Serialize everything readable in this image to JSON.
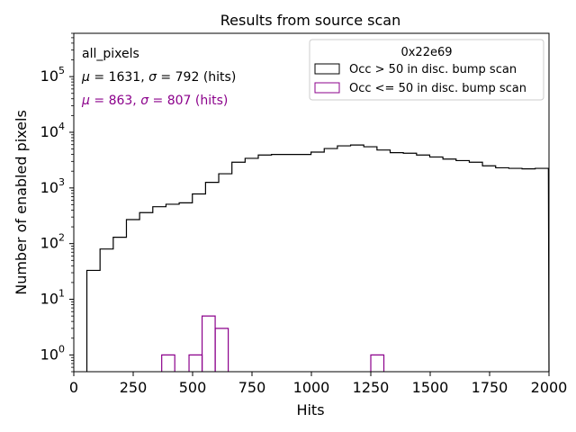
{
  "chart_data": {
    "type": "histogram",
    "title": "Results from source scan",
    "xlabel": "Hits",
    "ylabel": "Number of enabled pixels",
    "xlim": [
      0,
      2000
    ],
    "ylim_log": [
      0.5,
      600000
    ],
    "yscale": "log",
    "x_ticks": [
      0,
      250,
      500,
      750,
      1000,
      1250,
      1500,
      1750,
      2000
    ],
    "x_tick_labels": [
      "0",
      "250",
      "500",
      "750",
      "1000",
      "1250",
      "1500",
      "1750",
      "2000"
    ],
    "y_ticks": [
      {
        "value": 1,
        "base": "10",
        "exp": "0"
      },
      {
        "value": 10,
        "base": "10",
        "exp": "1"
      },
      {
        "value": 100,
        "base": "10",
        "exp": "2"
      },
      {
        "value": 1000,
        "base": "10",
        "exp": "3"
      },
      {
        "value": 10000,
        "base": "10",
        "exp": "4"
      },
      {
        "value": 100000,
        "base": "10",
        "exp": "5"
      }
    ],
    "legend": {
      "title": "0x22e69",
      "position": "top-right",
      "entries": [
        {
          "label": "Occ > 50 in disc. bump scan",
          "color": "#000000"
        },
        {
          "label": "Occ <= 50 in disc. bump scan",
          "color": "#8b008b"
        }
      ]
    },
    "annotations": {
      "name": "all_pixels",
      "stats_main": {
        "mu": "1631",
        "sigma": "792",
        "unit": "(hits)",
        "color": "#000000"
      },
      "stats_low": {
        "mu": "863",
        "sigma": "807",
        "unit": "(hits)",
        "color": "#8b008b"
      }
    },
    "bin_width": 55.5,
    "series": [
      {
        "name": "Occ > 50 in disc. bump scan",
        "color": "#000000",
        "bins_start": 55,
        "values": [
          33,
          80,
          130,
          270,
          360,
          460,
          510,
          540,
          780,
          1260,
          1800,
          2900,
          3400,
          3900,
          4000,
          4000,
          4000,
          4400,
          5100,
          5700,
          5900,
          5500,
          4800,
          4300,
          4200,
          3900,
          3600,
          3300,
          3100,
          2900,
          2500,
          2300,
          2250,
          2200,
          2250
        ]
      },
      {
        "name": "Occ <= 50 in disc. bump scan",
        "color": "#8b008b",
        "bars": [
          {
            "x0": 370,
            "x1": 425,
            "value": 1
          },
          {
            "x0": 485,
            "x1": 540,
            "value": 1
          },
          {
            "x0": 540,
            "x1": 595,
            "value": 5
          },
          {
            "x0": 595,
            "x1": 650,
            "value": 3
          },
          {
            "x0": 1250,
            "x1": 1305,
            "value": 1
          }
        ]
      }
    ]
  }
}
